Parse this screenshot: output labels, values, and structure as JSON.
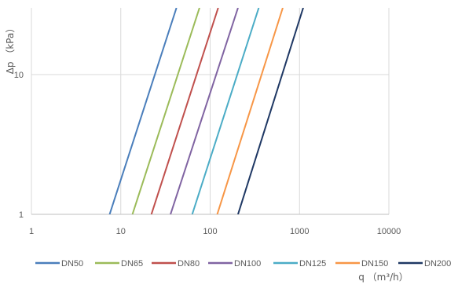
{
  "chart_data": {
    "type": "line",
    "title": "",
    "xlabel": "q （m³/h）",
    "ylabel": "Δp （kPa）",
    "x_scale": "log",
    "y_scale": "log",
    "xlim": [
      1,
      10000
    ],
    "ylim": [
      1,
      30
    ],
    "x_ticks": [
      "1",
      "10",
      "100",
      "1000",
      "10000"
    ],
    "y_ticks": [
      "1",
      "10"
    ],
    "grid": true,
    "legend_position": "bottom",
    "series": [
      {
        "name": "DN50",
        "color": "#4a7ebb",
        "points": [
          [
            7.5,
            1
          ],
          [
            42,
            30
          ]
        ]
      },
      {
        "name": "DN65",
        "color": "#9bbb59",
        "points": [
          [
            13.5,
            1
          ],
          [
            76,
            30
          ]
        ]
      },
      {
        "name": "DN80",
        "color": "#c0504d",
        "points": [
          [
            22,
            1
          ],
          [
            123,
            30
          ]
        ]
      },
      {
        "name": "DN100",
        "color": "#8064a2",
        "points": [
          [
            36,
            1
          ],
          [
            205,
            30
          ]
        ]
      },
      {
        "name": "DN125",
        "color": "#4bacc6",
        "points": [
          [
            63,
            1
          ],
          [
            350,
            30
          ]
        ]
      },
      {
        "name": "DN150",
        "color": "#f79646",
        "points": [
          [
            120,
            1
          ],
          [
            650,
            30
          ]
        ]
      },
      {
        "name": "DN200",
        "color": "#1f3864",
        "points": [
          [
            205,
            1
          ],
          [
            1100,
            30
          ]
        ]
      }
    ]
  }
}
